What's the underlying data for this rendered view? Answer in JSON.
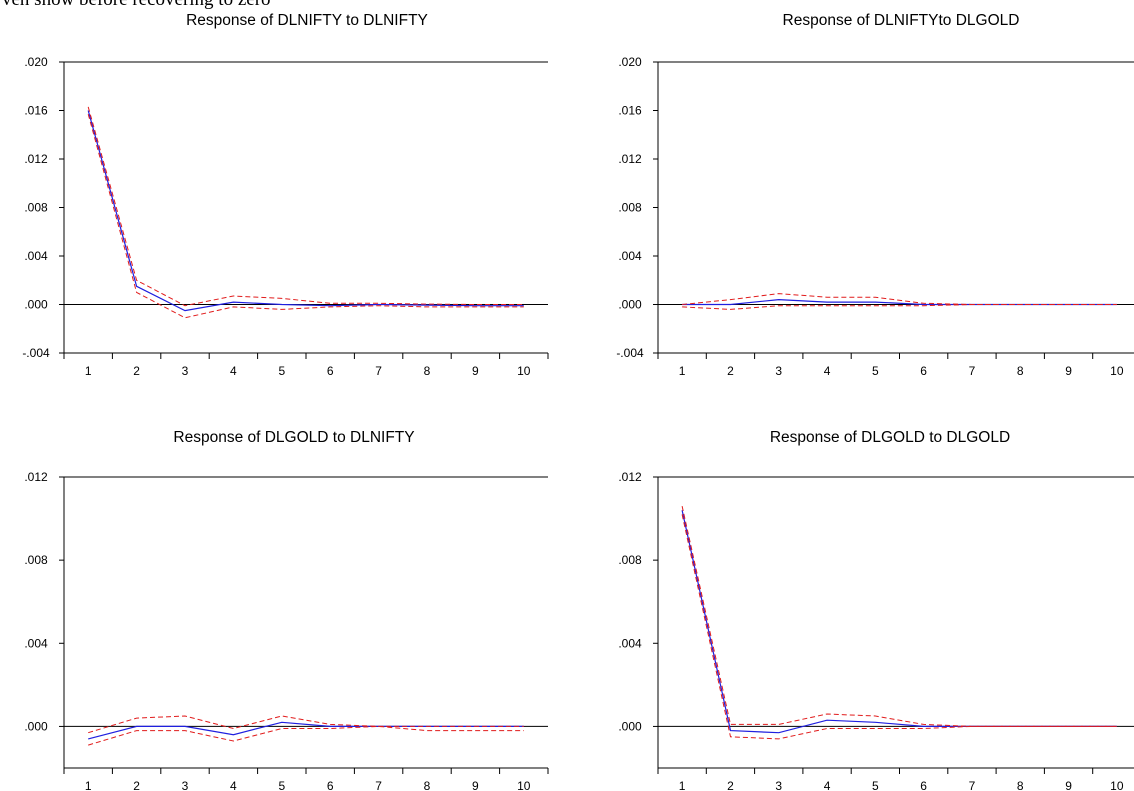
{
  "header_fragment": "ven show before recovering to zero",
  "colors": {
    "response": "#1f1fdf",
    "band": "#e11b1b",
    "axis": "#000000"
  },
  "chart_data": [
    {
      "type": "line",
      "title": "Response of DLNIFTY to DLNIFTY",
      "x": [
        1,
        2,
        3,
        4,
        5,
        6,
        7,
        8,
        9,
        10
      ],
      "ylim": [
        -0.004,
        0.02
      ],
      "yticks": [
        -0.004,
        0.0,
        0.004,
        0.008,
        0.012,
        0.016,
        0.02
      ],
      "ytick_labels": [
        "-.004",
        ".000",
        ".004",
        ".008",
        ".012",
        ".016",
        ".020"
      ],
      "series": [
        {
          "role": "response",
          "values": [
            0.016,
            0.0015,
            -0.0005,
            0.0002,
            0.0,
            -0.0001,
            0.0,
            -5e-05,
            -0.0001,
            -0.0001
          ]
        },
        {
          "role": "upper",
          "values": [
            0.0163,
            0.002,
            -0.0001,
            0.0007,
            0.0005,
            0.0001,
            0.0001,
            3e-05,
            0.0,
            0.0
          ]
        },
        {
          "role": "lower",
          "values": [
            0.0157,
            0.001,
            -0.0011,
            -0.0002,
            -0.0004,
            -0.0002,
            -0.0001,
            -0.0002,
            -0.0002,
            -0.0002
          ]
        }
      ],
      "grid": false
    },
    {
      "type": "line",
      "title": "Response of DLNIFTYto DLGOLD",
      "x": [
        1,
        2,
        3,
        4,
        5,
        6,
        7,
        8,
        9,
        10
      ],
      "ylim": [
        -0.004,
        0.02
      ],
      "yticks": [
        -0.004,
        0.0,
        0.004,
        0.008,
        0.012,
        0.016,
        0.02
      ],
      "ytick_labels": [
        "-.004",
        ".000",
        ".004",
        ".008",
        ".012",
        ".016",
        ".020"
      ],
      "series": [
        {
          "role": "response",
          "values": [
            0.0,
            0.0,
            0.0004,
            0.0002,
            0.0002,
            0.0,
            0.0,
            0.0,
            0.0,
            0.0
          ]
        },
        {
          "role": "upper",
          "values": [
            0.0,
            0.0004,
            0.0009,
            0.0006,
            0.0006,
            0.0001,
            0.0,
            0.0,
            0.0,
            0.0
          ]
        },
        {
          "role": "lower",
          "values": [
            -0.0002,
            -0.0004,
            -0.0001,
            -0.0001,
            -0.0001,
            -0.0001,
            0.0,
            0.0,
            0.0,
            0.0
          ]
        }
      ],
      "grid": false
    },
    {
      "type": "line",
      "title": "Response of DLGOLD to DLNIFTY",
      "x": [
        1,
        2,
        3,
        4,
        5,
        6,
        7,
        8,
        9,
        10
      ],
      "ylim": [
        -0.002,
        0.012
      ],
      "yticks": [
        0.0,
        0.004,
        0.008,
        0.012
      ],
      "ytick_labels": [
        ".000",
        ".004",
        ".008",
        ".012"
      ],
      "series": [
        {
          "role": "response",
          "values": [
            -0.0006,
            0.0,
            0.0,
            -0.0004,
            0.0002,
            0.0,
            0.0,
            0.0,
            0.0,
            0.0
          ]
        },
        {
          "role": "upper",
          "values": [
            -0.0003,
            0.0004,
            0.0005,
            -0.0001,
            0.0005,
            0.0001,
            0.0,
            0.0,
            0.0,
            0.0
          ]
        },
        {
          "role": "lower",
          "values": [
            -0.0009,
            -0.0002,
            -0.0002,
            -0.0007,
            -0.0001,
            -0.0001,
            0.0,
            -0.0002,
            -0.0002,
            -0.0002
          ]
        }
      ],
      "grid": false
    },
    {
      "type": "line",
      "title": "Response of DLGOLD to DLGOLD",
      "x": [
        1,
        2,
        3,
        4,
        5,
        6,
        7,
        8,
        9,
        10
      ],
      "ylim": [
        -0.002,
        0.012
      ],
      "yticks": [
        0.0,
        0.004,
        0.008,
        0.012
      ],
      "ytick_labels": [
        ".000",
        ".004",
        ".008",
        ".012"
      ],
      "series": [
        {
          "role": "response",
          "values": [
            0.0104,
            -0.0002,
            -0.0003,
            0.0003,
            0.0002,
            0.0,
            0.0,
            0.0,
            0.0,
            0.0
          ]
        },
        {
          "role": "upper",
          "values": [
            0.0106,
            0.0001,
            0.0001,
            0.0006,
            0.0005,
            0.0001,
            0.0,
            0.0,
            0.0,
            0.0
          ]
        },
        {
          "role": "lower",
          "values": [
            0.0102,
            -0.0005,
            -0.0006,
            -0.0001,
            -0.0001,
            -0.0001,
            0.0,
            0.0,
            0.0,
            0.0
          ]
        }
      ],
      "grid": false
    }
  ]
}
